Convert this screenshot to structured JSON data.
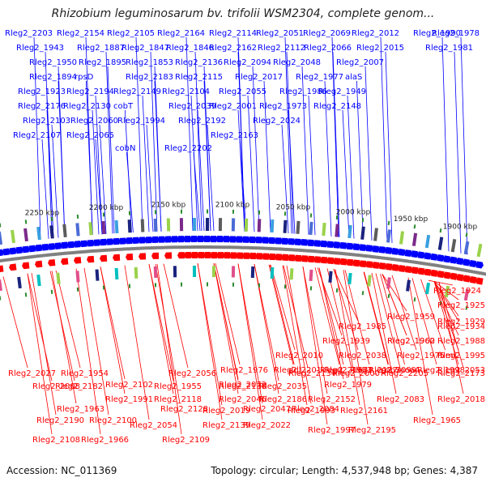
{
  "title": "Rhizobium leguminosarum bv. trifolii WSM2304, complete genom...",
  "footer": {
    "accession": "Accession: NC_011369",
    "info": "Topology: circular; Length: 4,537,948 bp; Genes: 4,387"
  },
  "colors": {
    "forward": "#0000ff",
    "reverse": "#ff0000",
    "backbone": "#808080",
    "tick_marks": "#2e8b2e"
  },
  "scale_labels": [
    "1900 kbp",
    "1950 kbp",
    "2000 kbp",
    "2050 kbp",
    "2100 kbp",
    "2150 kbp",
    "2200 kbp",
    "2250 kbp"
  ],
  "forward_labels": [
    "Rleg2_2203",
    "Rleg2_2154",
    "Rleg2_2105",
    "Rleg2_2164",
    "Rleg2_2114",
    "Rleg2_2051",
    "Rleg2_2069",
    "Rleg2_2012",
    "Rleg2_1990",
    "Rleg2_1978",
    "Rleg2_1943",
    "Rleg2_1887",
    "Rleg2_1847",
    "Rleg2_1846",
    "Rleg2_2162",
    "Rleg2_2112",
    "Rleg2_2066",
    "Rleg2_2015",
    "Rleg2_1981",
    "Rleg2_1950",
    "Rleg2_1895",
    "Rleg2_1853",
    "Rleg2_2136",
    "Rleg2_2094",
    "Rleg2_2048",
    "Rleg2_2007",
    "Rleg2_1894",
    "rpsD",
    "Rleg2_2183",
    "Rleg2_2115",
    "Rleg2_2017",
    "Rleg2_1977",
    "alaS",
    "Rleg2_1923",
    "Rleg2_2194",
    "Rleg2_2149",
    "Rleg2_2104",
    "Rleg2_2055",
    "Rleg2_1986",
    "Rleg2_1949",
    "Rleg2_2176",
    "Rleg2_2130",
    "cobT",
    "Rleg2_2039",
    "Rleg2_2001",
    "Rleg2_1973",
    "Rleg2_2148",
    "Rleg2_2103",
    "Rleg2_2060",
    "Rleg2_1994",
    "Rleg2_2192",
    "Rleg2_2024",
    "Rleg2_2107",
    "Rleg2_2065",
    "Rleg2_2163",
    "cobN",
    "Rleg2_2202"
  ],
  "reverse_labels": [
    "Rleg2_1924",
    "Rleg2_1925",
    "Rleg2_1929",
    "Rleg2_1959",
    "Rleg2_1985",
    "Rleg2_1934",
    "Rleg2_1960",
    "Rleg2_1988",
    "Rleg2_1939",
    "Rleg2_1962",
    "Rleg2_2010",
    "Rleg2_2038",
    "Rleg2_1995",
    "Rleg2_1975",
    "fumC",
    "Rleg2_1953",
    "cobS",
    "Rleg2_2053",
    "ddl",
    "Rleg2_2127",
    "moaA",
    "Rleg2_1998",
    "Rleg2_1976",
    "Rleg2_2201",
    "Rleg2_2167",
    "Rleg2_2099",
    "Rleg2_2027",
    "Rleg2_1954",
    "Rleg2_2056",
    "Rleg2_2134",
    "Rleg2_2000",
    "Rleg2_2205",
    "Rleg2_2173",
    "Rleg2_2102",
    "Rleg2_2072",
    "Rleg2_1979",
    "Rleg2_1955",
    "Rleg2_2138",
    "Rleg2_2035",
    "Rleg2_2008",
    "Rleg2_2182",
    "Rleg2_2118",
    "Rleg2_2046",
    "Rleg2_2083",
    "Rleg2_2018",
    "Rleg2_1991",
    "Rleg2_2186",
    "Rleg2_2152",
    "Rleg2_1963",
    "Rleg2_2128",
    "Rleg2_2047",
    "Rleg2_2084",
    "Rleg2_2019",
    "Rleg2_1993",
    "Rleg2_2161",
    "Rleg2_2190",
    "Rleg2_2100",
    "Rleg2_1965",
    "Rleg2_2054",
    "Rleg2_2139",
    "Rleg2_2022",
    "Rleg2_1997",
    "Rleg2_2195",
    "Rleg2_1966",
    "Rleg2_2108",
    "Rleg2_2109"
  ]
}
